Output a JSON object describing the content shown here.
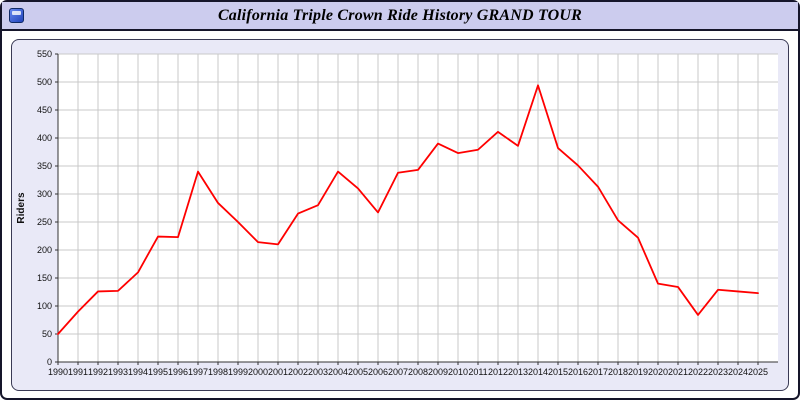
{
  "header": {
    "title": "California Triple Crown Ride History GRAND TOUR",
    "icon": "app-icon"
  },
  "colors": {
    "titlebar_bg": "#ccccee",
    "panel_bg": "#e9e9f7",
    "plot_bg": "#ffffff",
    "grid": "#c9c9c9",
    "axis": "#333333",
    "line": "#ff0000"
  },
  "chart_data": {
    "type": "line",
    "title": "California Triple Crown Ride History GRAND TOUR",
    "xlabel": "",
    "ylabel": "Riders",
    "ylim": [
      0,
      550
    ],
    "ytick_step": 50,
    "grid": true,
    "legend_position": "none",
    "categories": [
      "1990",
      "1991",
      "1992",
      "1993",
      "1994",
      "1995",
      "1996",
      "1997",
      "1998",
      "1999",
      "2000",
      "2001",
      "2002",
      "2003",
      "2004",
      "2005",
      "2006",
      "2007",
      "2008",
      "2009",
      "2010",
      "2011",
      "2012",
      "2013",
      "2014",
      "2015",
      "2016",
      "2017",
      "2018",
      "2019",
      "2020",
      "2021",
      "2022",
      "2023",
      "2024",
      "2025"
    ],
    "series": [
      {
        "name": "Riders",
        "color": "#ff0000",
        "values": [
          50,
          90,
          126,
          127,
          160,
          224,
          223,
          340,
          284,
          250,
          214,
          210,
          265,
          280,
          340,
          310,
          267,
          338,
          343,
          390,
          373,
          379,
          411,
          386,
          494,
          382,
          351,
          313,
          253,
          222,
          140,
          134,
          84,
          129,
          126,
          123
        ]
      }
    ]
  }
}
